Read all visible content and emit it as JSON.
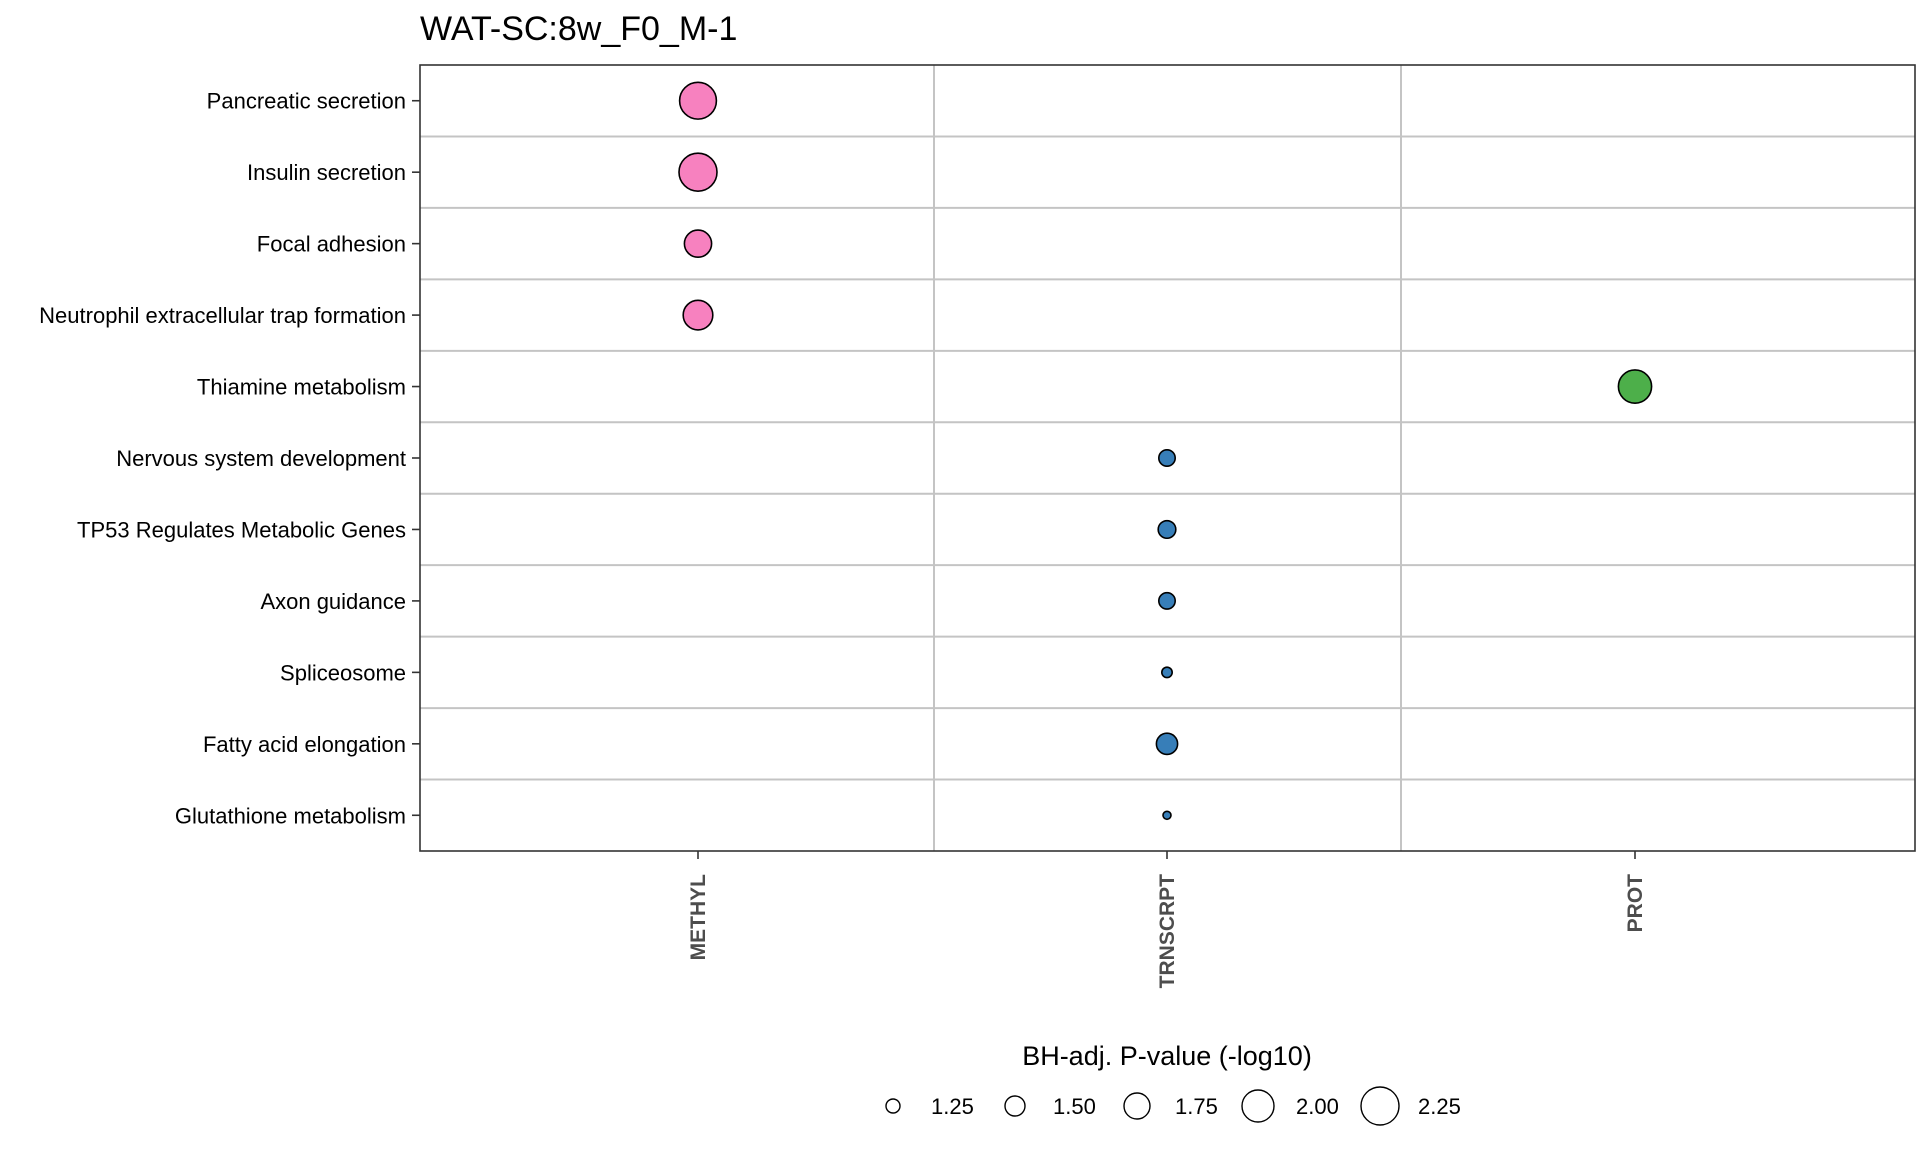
{
  "chart_data": {
    "type": "scatter",
    "title": "WAT-SC:8w_F0_M-1",
    "categories_x": [
      "METHYL",
      "TRNSCRPT",
      "PROT"
    ],
    "categories_y": [
      "Pancreatic secretion",
      "Insulin secretion",
      "Focal adhesion",
      "Neutrophil extracellular trap formation",
      "Thiamine metabolism",
      "Nervous system development",
      "TP53 Regulates Metabolic Genes",
      "Axon guidance",
      "Spliceosome",
      "Fatty acid elongation",
      "Glutathione metabolism"
    ],
    "colors": {
      "METHYL": "#f781bf",
      "TRNSCRPT": "#377eb8",
      "PROT": "#4daf4a"
    },
    "points": [
      {
        "x": "METHYL",
        "y": "Pancreatic secretion",
        "value": 2.2
      },
      {
        "x": "METHYL",
        "y": "Insulin secretion",
        "value": 2.25
      },
      {
        "x": "METHYL",
        "y": "Focal adhesion",
        "value": 1.8
      },
      {
        "x": "METHYL",
        "y": "Neutrophil extracellular trap formation",
        "value": 1.9
      },
      {
        "x": "PROT",
        "y": "Thiamine metabolism",
        "value": 2.05
      },
      {
        "x": "TRNSCRPT",
        "y": "Nervous system development",
        "value": 1.35
      },
      {
        "x": "TRNSCRPT",
        "y": "TP53 Regulates Metabolic Genes",
        "value": 1.4
      },
      {
        "x": "TRNSCRPT",
        "y": "Axon guidance",
        "value": 1.35
      },
      {
        "x": "TRNSCRPT",
        "y": "Spliceosome",
        "value": 1.1
      },
      {
        "x": "TRNSCRPT",
        "y": "Fatty acid elongation",
        "value": 1.55
      },
      {
        "x": "TRNSCRPT",
        "y": "Glutathione metabolism",
        "value": 1.0
      }
    ],
    "size_legend": {
      "title": "BH-adj. P-value (-log10)",
      "values": [
        1.25,
        1.5,
        1.75,
        2.0,
        2.25
      ],
      "labels": [
        "1.25",
        "1.50",
        "1.75",
        "2.00",
        "2.25"
      ],
      "placement": "bottom"
    },
    "grid": true,
    "xlabel": "",
    "ylabel": ""
  }
}
